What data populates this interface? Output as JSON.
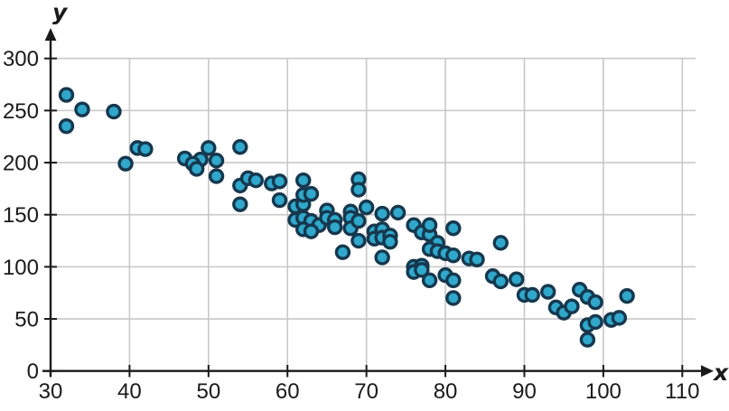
{
  "chart_data": {
    "type": "scatter",
    "title": "",
    "xlabel": "x",
    "ylabel": "y",
    "xlim": [
      30,
      110
    ],
    "ylim": [
      0,
      300
    ],
    "x_ticks": [
      30,
      40,
      50,
      60,
      70,
      80,
      90,
      100,
      110
    ],
    "y_ticks": [
      0,
      50,
      100,
      150,
      200,
      250,
      300
    ],
    "grid": true,
    "legend_position": "none",
    "point_color": "#2FA8CC",
    "point_border_color": "#16384E",
    "grid_color": "#C8C8C8",
    "axis_color": "#1A1A1A",
    "points": [
      [
        32,
        265
      ],
      [
        34,
        251
      ],
      [
        38,
        249
      ],
      [
        32,
        235
      ],
      [
        41,
        214
      ],
      [
        42,
        213
      ],
      [
        39.5,
        199
      ],
      [
        47,
        204
      ],
      [
        49,
        203
      ],
      [
        48,
        199
      ],
      [
        48.5,
        194
      ],
      [
        50,
        214
      ],
      [
        51,
        202
      ],
      [
        51,
        187
      ],
      [
        54,
        215
      ],
      [
        54,
        160
      ],
      [
        54,
        178
      ],
      [
        55,
        185
      ],
      [
        56,
        183
      ],
      [
        58,
        180
      ],
      [
        59,
        182
      ],
      [
        59,
        164
      ],
      [
        61,
        158
      ],
      [
        62,
        160
      ],
      [
        62,
        169
      ],
      [
        63,
        170
      ],
      [
        62,
        183
      ],
      [
        61,
        145
      ],
      [
        62,
        147
      ],
      [
        63,
        144
      ],
      [
        64,
        140
      ],
      [
        62,
        136
      ],
      [
        63,
        134
      ],
      [
        65,
        154
      ],
      [
        65,
        147
      ],
      [
        66,
        145
      ],
      [
        66,
        138
      ],
      [
        67,
        114
      ],
      [
        68,
        153
      ],
      [
        68,
        147
      ],
      [
        68,
        137
      ],
      [
        69,
        144
      ],
      [
        69,
        125
      ],
      [
        69,
        184
      ],
      [
        69,
        174
      ],
      [
        70,
        157
      ],
      [
        71,
        134
      ],
      [
        72,
        136
      ],
      [
        71,
        127
      ],
      [
        72,
        128
      ],
      [
        73,
        130
      ],
      [
        73,
        124
      ],
      [
        72,
        109
      ],
      [
        72,
        151
      ],
      [
        74,
        152
      ],
      [
        76,
        140
      ],
      [
        77,
        133
      ],
      [
        78,
        131
      ],
      [
        78,
        140
      ],
      [
        81,
        137
      ],
      [
        79,
        123
      ],
      [
        78,
        117
      ],
      [
        79,
        115
      ],
      [
        80,
        113
      ],
      [
        81,
        111
      ],
      [
        76,
        100
      ],
      [
        77,
        101
      ],
      [
        76,
        95
      ],
      [
        77,
        97
      ],
      [
        78,
        87
      ],
      [
        80,
        92
      ],
      [
        81,
        87
      ],
      [
        81,
        70
      ],
      [
        83,
        108
      ],
      [
        84,
        107
      ],
      [
        87,
        123
      ],
      [
        86,
        91
      ],
      [
        87,
        86
      ],
      [
        89,
        88
      ],
      [
        90,
        73
      ],
      [
        91,
        73
      ],
      [
        93,
        76
      ],
      [
        94,
        61
      ],
      [
        95,
        56
      ],
      [
        96,
        62
      ],
      [
        97,
        78
      ],
      [
        98,
        71
      ],
      [
        99,
        66
      ],
      [
        101,
        49
      ],
      [
        102,
        51
      ],
      [
        98,
        44
      ],
      [
        99,
        47
      ],
      [
        98,
        30
      ],
      [
        103,
        72
      ]
    ]
  }
}
